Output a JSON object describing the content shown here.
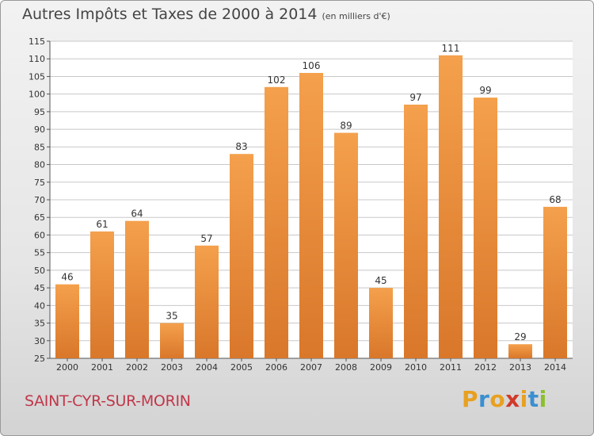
{
  "header": {
    "title": "Autres Impôts et Taxes de 2000 à 2014",
    "unit": "(en milliers d'€)"
  },
  "footer": {
    "location": "SAINT-CYR-SUR-MORIN",
    "brand_letters": [
      "P",
      "r",
      "o",
      "x",
      "i",
      "t",
      "i"
    ],
    "brand_colors": [
      "#e8a020",
      "#3a8fd0",
      "#e8a020",
      "#d03a2a",
      "#e8a020",
      "#3a8fd0",
      "#8bbf2e"
    ]
  },
  "colors": {
    "bar": "#f4a04c",
    "bar_dark": "#d9772a",
    "grid": "#c8c8c8"
  },
  "chart_data": {
    "type": "bar",
    "categories": [
      "2000",
      "2001",
      "2002",
      "2003",
      "2004",
      "2005",
      "2006",
      "2007",
      "2008",
      "2009",
      "2010",
      "2011",
      "2012",
      "2013",
      "2014"
    ],
    "values": [
      46,
      61,
      64,
      35,
      57,
      83,
      102,
      106,
      89,
      45,
      97,
      111,
      99,
      29,
      68
    ],
    "ylim": [
      25,
      115
    ],
    "yticks": [
      25,
      30,
      35,
      40,
      45,
      50,
      55,
      60,
      65,
      70,
      75,
      80,
      85,
      90,
      95,
      100,
      105,
      110,
      115
    ],
    "grid": true,
    "title": "Autres Impôts et Taxes de 2000 à 2014",
    "xlabel": "",
    "ylabel": ""
  }
}
